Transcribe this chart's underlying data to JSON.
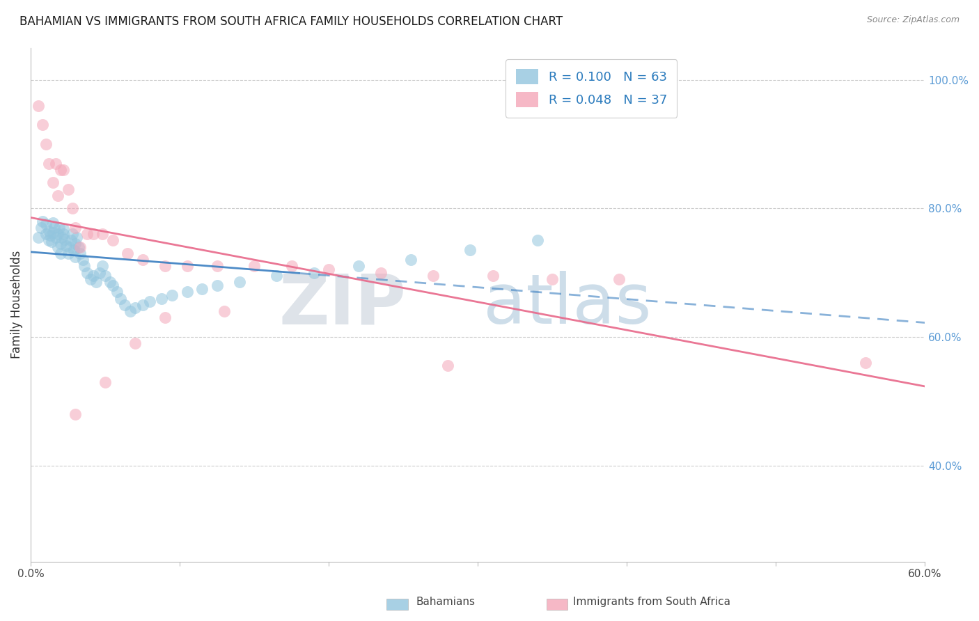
{
  "title": "BAHAMIAN VS IMMIGRANTS FROM SOUTH AFRICA FAMILY HOUSEHOLDS CORRELATION CHART",
  "source": "Source: ZipAtlas.com",
  "ylabel": "Family Households",
  "xlim": [
    0.0,
    0.6
  ],
  "ylim": [
    0.25,
    1.05
  ],
  "xtick_vals": [
    0.0,
    0.1,
    0.2,
    0.3,
    0.4,
    0.5,
    0.6
  ],
  "xticklabels": [
    "0.0%",
    "",
    "",
    "",
    "",
    "",
    "60.0%"
  ],
  "ytick_vals": [
    0.4,
    0.6,
    0.8,
    1.0
  ],
  "yticklabels": [
    "40.0%",
    "60.0%",
    "80.0%",
    "100.0%"
  ],
  "blue_color": "#92c5de",
  "pink_color": "#f4a6b8",
  "blue_line_color": "#3a7fc1",
  "pink_line_color": "#e8688a",
  "r_blue": 0.1,
  "n_blue": 63,
  "r_pink": 0.048,
  "n_pink": 37,
  "blue_scatter_x": [
    0.005,
    0.007,
    0.008,
    0.01,
    0.01,
    0.012,
    0.012,
    0.013,
    0.014,
    0.015,
    0.015,
    0.016,
    0.017,
    0.018,
    0.018,
    0.019,
    0.02,
    0.02,
    0.021,
    0.022,
    0.022,
    0.023,
    0.024,
    0.025,
    0.026,
    0.027,
    0.028,
    0.029,
    0.03,
    0.03,
    0.031,
    0.032,
    0.033,
    0.035,
    0.036,
    0.038,
    0.04,
    0.042,
    0.044,
    0.046,
    0.048,
    0.05,
    0.053,
    0.055,
    0.058,
    0.06,
    0.063,
    0.067,
    0.07,
    0.075,
    0.08,
    0.088,
    0.095,
    0.105,
    0.115,
    0.125,
    0.14,
    0.165,
    0.19,
    0.22,
    0.255,
    0.295,
    0.34
  ],
  "blue_scatter_y": [
    0.755,
    0.77,
    0.78,
    0.76,
    0.775,
    0.75,
    0.765,
    0.758,
    0.748,
    0.762,
    0.778,
    0.77,
    0.755,
    0.74,
    0.76,
    0.77,
    0.745,
    0.73,
    0.755,
    0.76,
    0.768,
    0.752,
    0.742,
    0.73,
    0.74,
    0.75,
    0.76,
    0.735,
    0.725,
    0.745,
    0.755,
    0.74,
    0.73,
    0.72,
    0.71,
    0.7,
    0.69,
    0.695,
    0.685,
    0.7,
    0.71,
    0.695,
    0.685,
    0.68,
    0.67,
    0.66,
    0.65,
    0.64,
    0.645,
    0.65,
    0.655,
    0.66,
    0.665,
    0.67,
    0.675,
    0.68,
    0.685,
    0.695,
    0.7,
    0.71,
    0.72,
    0.735,
    0.75
  ],
  "pink_scatter_x": [
    0.005,
    0.008,
    0.01,
    0.012,
    0.015,
    0.017,
    0.018,
    0.02,
    0.022,
    0.025,
    0.028,
    0.03,
    0.033,
    0.038,
    0.042,
    0.048,
    0.055,
    0.065,
    0.075,
    0.09,
    0.105,
    0.125,
    0.15,
    0.175,
    0.2,
    0.235,
    0.27,
    0.31,
    0.35,
    0.395,
    0.03,
    0.05,
    0.07,
    0.09,
    0.13,
    0.28,
    0.56
  ],
  "pink_scatter_y": [
    0.96,
    0.93,
    0.9,
    0.87,
    0.84,
    0.87,
    0.82,
    0.86,
    0.86,
    0.83,
    0.8,
    0.77,
    0.74,
    0.76,
    0.76,
    0.76,
    0.75,
    0.73,
    0.72,
    0.71,
    0.71,
    0.71,
    0.71,
    0.71,
    0.705,
    0.7,
    0.695,
    0.695,
    0.69,
    0.69,
    0.48,
    0.53,
    0.59,
    0.63,
    0.64,
    0.555,
    0.56
  ],
  "watermark_zip": "ZIP",
  "watermark_atlas": "atlas"
}
